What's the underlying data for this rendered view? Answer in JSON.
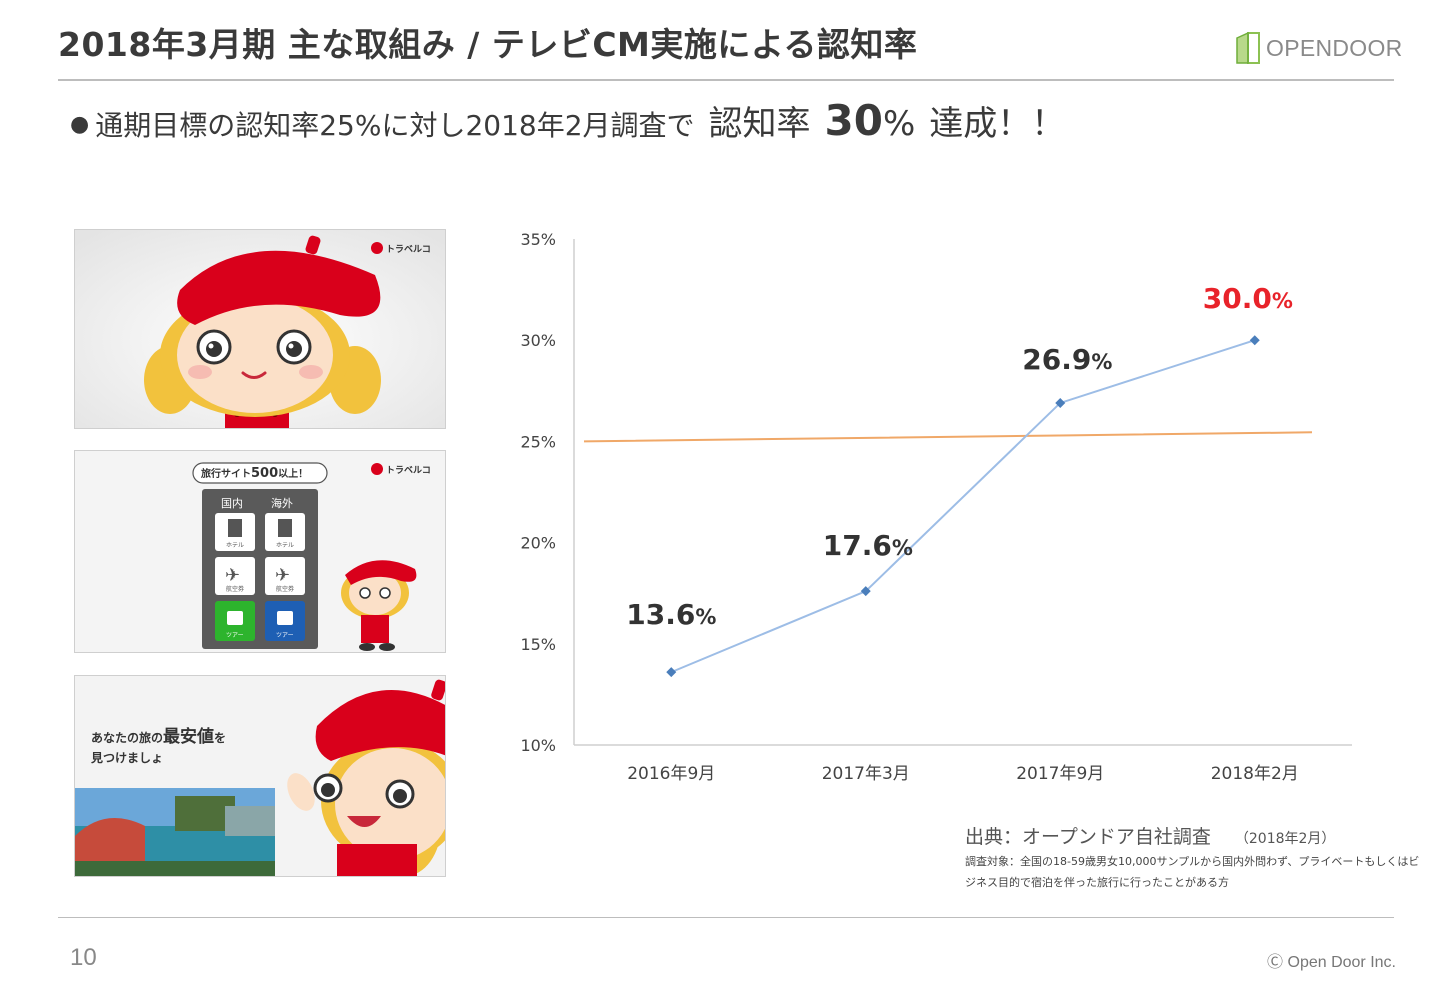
{
  "slide": {
    "title": "2018年3月期 主な取組み / テレビCM実施による認知率",
    "logo_text": "OPENDOOR",
    "subtitle": {
      "bullet": "●",
      "main": "通期目標の認知率25%に対し2018年2月調査で",
      "emph": "認知率",
      "big": "30",
      "pct": "%",
      "done": "達成！！"
    },
    "page_number": "10",
    "copyright": "Ⓒ Open Door Inc."
  },
  "screenshots": {
    "brand": "トラベルコ",
    "shot2_bubble_prefix": "旅行サイト",
    "shot2_bubble_num": "500",
    "shot2_bubble_suffix": "以上！",
    "shot2_tab_domestic": "国内",
    "shot2_tab_overseas": "海外",
    "shot2_tile_hotel": "ホテル",
    "shot2_tile_air": "航空券",
    "shot2_tile_tour": "ツアー",
    "shot3_line1_a": "あなたの旅の",
    "shot3_line1_b": "最安値",
    "shot3_line1_c": "を",
    "shot3_line2": "見つけましょ"
  },
  "source": {
    "label": "出典：オープンドア自社調査",
    "date": "（2018年2月）",
    "note": "調査対象：全国の18-59歳男女10,000サンプルから国内外問わず、プライベートもしくはビジネス目的で宿泊を伴った旅行に行ったことがある方"
  },
  "colors": {
    "series_line": "#9dbde6",
    "marker": "#4a7ebb",
    "target_line": "#f0a868",
    "highlight": "#e8232a",
    "beret": "#d9001b",
    "hair": "#f2c23d"
  },
  "chart_data": {
    "type": "line",
    "categories": [
      "2016年9月",
      "2017年3月",
      "2017年9月",
      "2018年2月"
    ],
    "series": [
      {
        "name": "認知率",
        "values": [
          13.6,
          17.6,
          26.9,
          30.0
        ]
      },
      {
        "name": "目標",
        "values": [
          25.0,
          25.15,
          25.3,
          25.45
        ]
      }
    ],
    "data_labels": [
      {
        "num": "13.6",
        "unit": "%"
      },
      {
        "num": "17.6",
        "unit": "%"
      },
      {
        "num": "26.9",
        "unit": "%"
      },
      {
        "num": "30.0",
        "unit": "%"
      }
    ],
    "yticks": [
      "10%",
      "15%",
      "20%",
      "25%",
      "30%",
      "35%"
    ],
    "ylim": [
      10,
      35
    ],
    "grid": false
  }
}
